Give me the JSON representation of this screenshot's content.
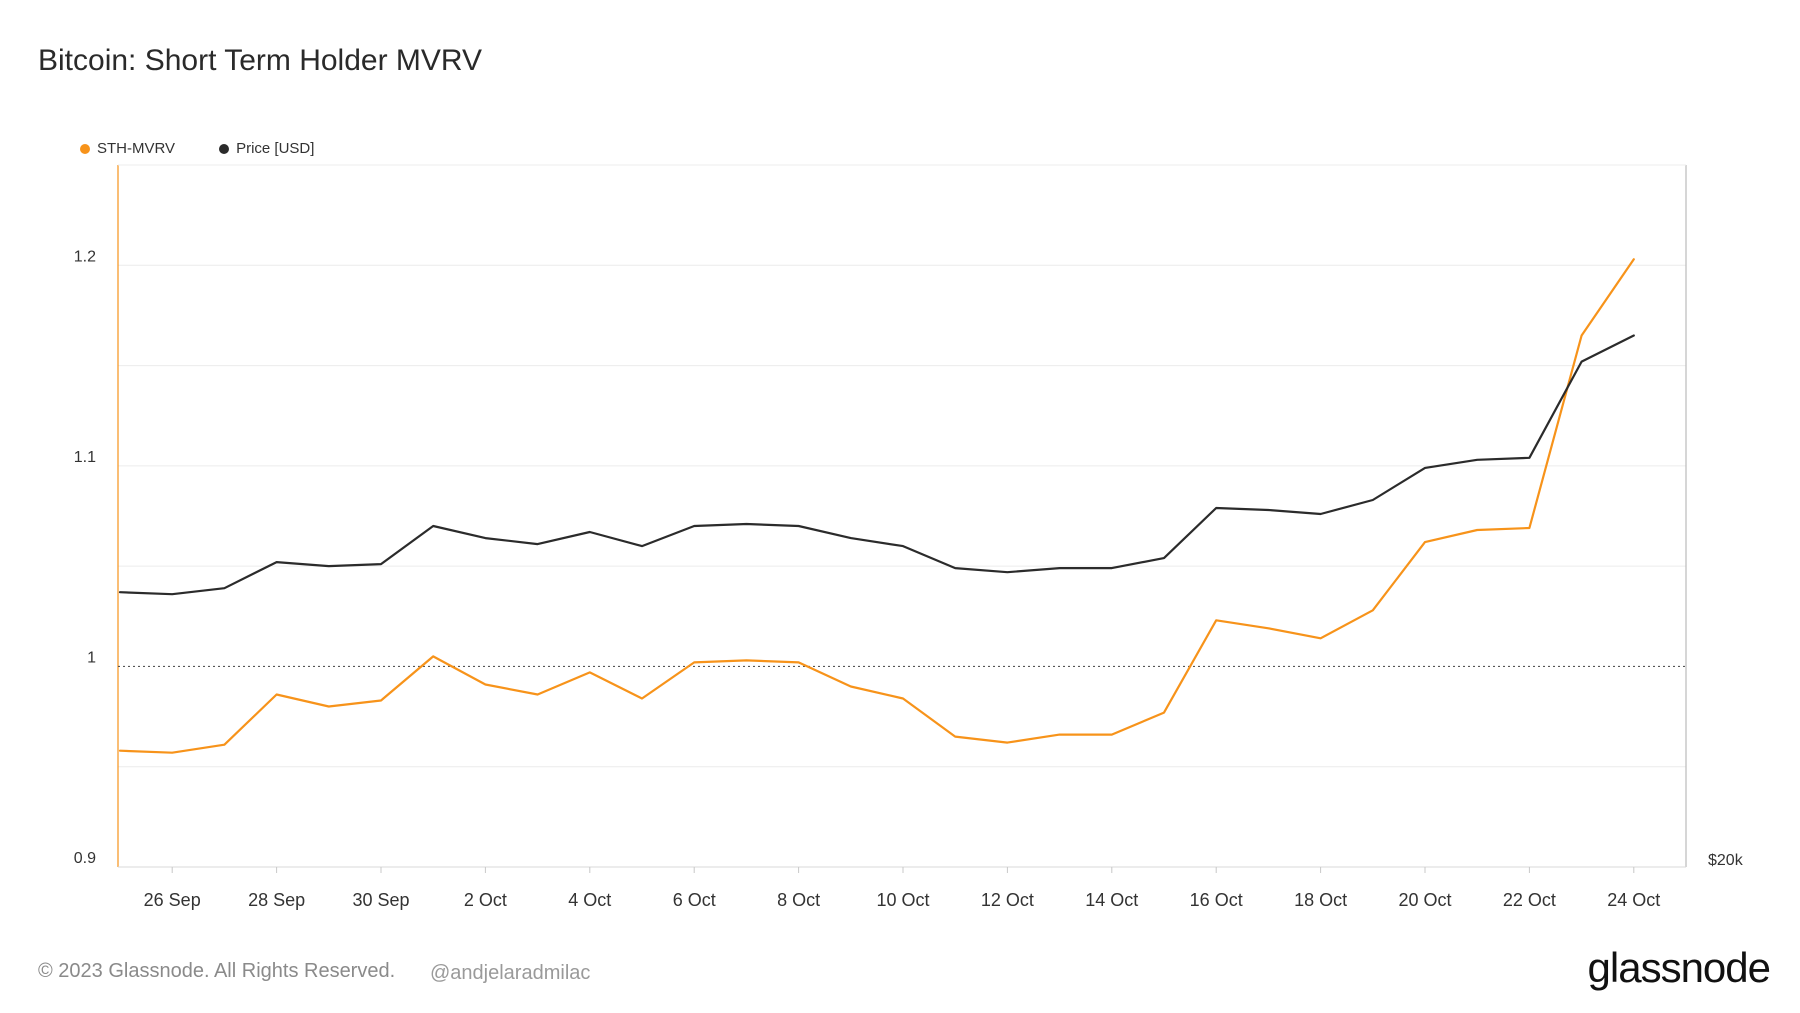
{
  "title": "Bitcoin: Short Term Holder MVRV",
  "footer": {
    "copyright": "© 2023 Glassnode. All Rights Reserved.",
    "handle": "@andjelaradmilac",
    "brand": "glassnode"
  },
  "colors": {
    "sth_mvrv": "#f7931a",
    "price": "#2b2b2b",
    "grid": "#ececec",
    "axis": "#d8d8d8",
    "reference": "#555555"
  },
  "chart_data": {
    "type": "line",
    "title": "Bitcoin: Short Term Holder MVRV",
    "legend_position": "top-left",
    "x": [
      "25 Sep",
      "26 Sep",
      "27 Sep",
      "28 Sep",
      "29 Sep",
      "30 Sep",
      "1 Oct",
      "2 Oct",
      "3 Oct",
      "4 Oct",
      "5 Oct",
      "6 Oct",
      "7 Oct",
      "8 Oct",
      "9 Oct",
      "10 Oct",
      "11 Oct",
      "12 Oct",
      "13 Oct",
      "14 Oct",
      "15 Oct",
      "16 Oct",
      "17 Oct",
      "18 Oct",
      "19 Oct",
      "20 Oct",
      "21 Oct",
      "22 Oct",
      "23 Oct",
      "24 Oct"
    ],
    "x_tick_labels": [
      "26 Sep",
      "28 Sep",
      "30 Sep",
      "2 Oct",
      "4 Oct",
      "6 Oct",
      "8 Oct",
      "10 Oct",
      "12 Oct",
      "14 Oct",
      "16 Oct",
      "18 Oct",
      "20 Oct",
      "22 Oct",
      "24 Oct"
    ],
    "y_left": {
      "ticks": [
        "0.9",
        "1.1",
        "1.2"
      ],
      "tick_values": [
        0.9,
        1.1,
        1.2
      ],
      "ylim": [
        0.9,
        1.25
      ]
    },
    "y_right": {
      "ticks": [
        "$20k"
      ]
    },
    "grid": true,
    "reference_line": {
      "value": 1.0,
      "style": "dotted",
      "label": "1"
    },
    "series": [
      {
        "name": "STH-MVRV",
        "values": [
          0.958,
          0.957,
          0.961,
          0.986,
          0.98,
          0.983,
          1.005,
          0.991,
          0.986,
          0.997,
          0.984,
          1.002,
          1.003,
          1.002,
          0.99,
          0.984,
          0.965,
          0.962,
          0.966,
          0.966,
          0.977,
          1.023,
          1.019,
          1.014,
          1.028,
          1.062,
          1.068,
          1.069,
          1.165,
          1.203
        ]
      },
      {
        "name": "Price [USD]",
        "values": [
          1.037,
          1.036,
          1.039,
          1.052,
          1.05,
          1.051,
          1.07,
          1.064,
          1.061,
          1.067,
          1.06,
          1.07,
          1.071,
          1.07,
          1.064,
          1.06,
          1.049,
          1.047,
          1.049,
          1.049,
          1.054,
          1.079,
          1.078,
          1.076,
          1.083,
          1.099,
          1.103,
          1.104,
          1.152,
          1.165
        ]
      }
    ]
  }
}
